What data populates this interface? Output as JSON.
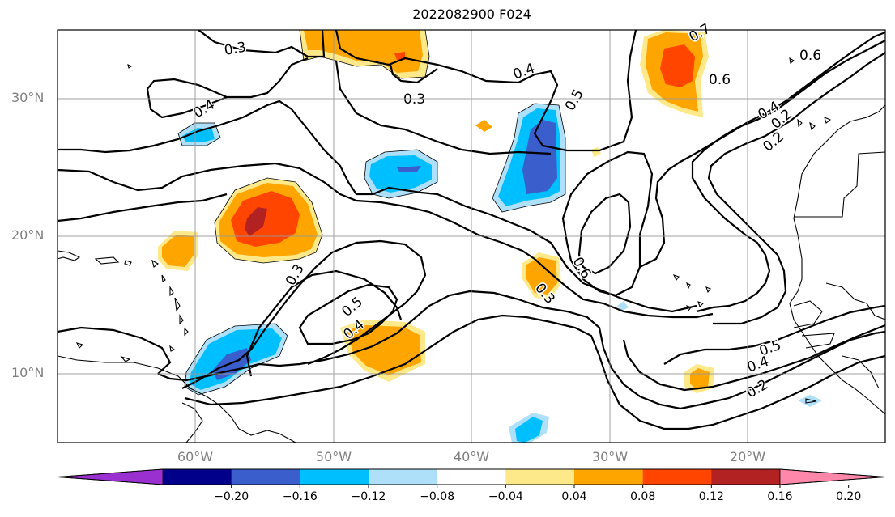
{
  "title": "2022082900 F024",
  "latitude_labels": [
    {
      "label": "30°N"
    },
    {
      "label": "20°N"
    },
    {
      "label": "10°N"
    }
  ],
  "longitude_labels": [
    {
      "label": "60°W"
    },
    {
      "label": "50°W"
    },
    {
      "label": "40°W"
    },
    {
      "label": "30°W"
    },
    {
      "label": "20°W"
    }
  ],
  "contour_labels": [
    "0.3",
    "0.4",
    "0.3",
    "0.4",
    "0.5",
    "0.7",
    "0.6",
    "0.4",
    "0.2",
    "0.6",
    "0.3",
    "0.5",
    "0.4",
    "0.6",
    "0.3",
    "0.5",
    "0.4",
    "0.2",
    "0.2"
  ],
  "colorbar": {
    "ticks": [
      "−0.20",
      "−0.16",
      "−0.12",
      "−0.08",
      "−0.04",
      "0.04",
      "0.08",
      "0.12",
      "0.16",
      "0.20"
    ],
    "colors": [
      "#9b30d0",
      "#00008b",
      "#3a5fcd",
      "#00bfff",
      "#aee0fa",
      "#ffffff",
      "#fde98a",
      "#ffa500",
      "#ff4500",
      "#b22222",
      "#ff88aa"
    ]
  }
}
